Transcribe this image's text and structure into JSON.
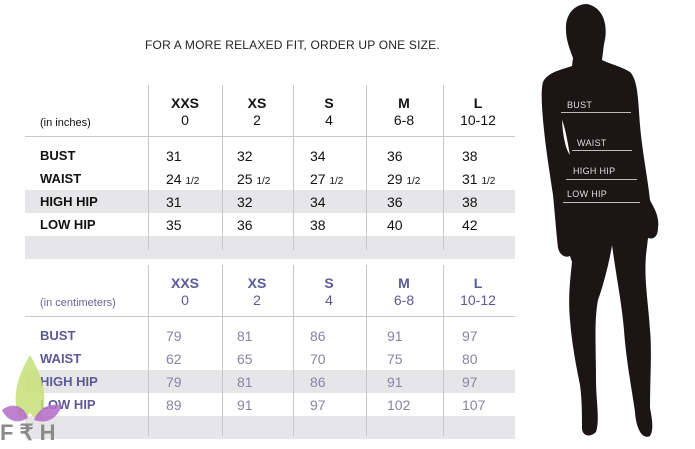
{
  "note": "FOR A MORE RELAXED FIT, ORDER UP ONE SIZE.",
  "sizes": [
    {
      "name": "XXS",
      "number": "0"
    },
    {
      "name": "XS",
      "number": "2"
    },
    {
      "name": "S",
      "number": "4"
    },
    {
      "name": "M",
      "number": "6-8"
    },
    {
      "name": "L",
      "number": "10-12"
    }
  ],
  "inches": {
    "unit_label": "(in inches)",
    "rows": [
      {
        "label": "BUST",
        "values": [
          {
            "w": "31",
            "f": ""
          },
          {
            "w": "32",
            "f": ""
          },
          {
            "w": "34",
            "f": ""
          },
          {
            "w": "36",
            "f": ""
          },
          {
            "w": "38",
            "f": ""
          }
        ]
      },
      {
        "label": "WAIST",
        "values": [
          {
            "w": "24",
            "f": "1/2"
          },
          {
            "w": "25",
            "f": "1/2"
          },
          {
            "w": "27",
            "f": "1/2"
          },
          {
            "w": "29",
            "f": "1/2"
          },
          {
            "w": "31",
            "f": "1/2"
          }
        ]
      },
      {
        "label": "HIGH HIP",
        "values": [
          {
            "w": "31",
            "f": ""
          },
          {
            "w": "32",
            "f": ""
          },
          {
            "w": "34",
            "f": ""
          },
          {
            "w": "36",
            "f": ""
          },
          {
            "w": "38",
            "f": ""
          }
        ]
      },
      {
        "label": "LOW HIP",
        "values": [
          {
            "w": "35",
            "f": ""
          },
          {
            "w": "36",
            "f": ""
          },
          {
            "w": "38",
            "f": ""
          },
          {
            "w": "40",
            "f": ""
          },
          {
            "w": "42",
            "f": ""
          }
        ]
      }
    ]
  },
  "centimeters": {
    "unit_label": "(in centimeters)",
    "rows": [
      {
        "label": "BUST",
        "values": [
          {
            "w": "79",
            "f": ""
          },
          {
            "w": "81",
            "f": ""
          },
          {
            "w": "86",
            "f": ""
          },
          {
            "w": "91",
            "f": ""
          },
          {
            "w": "97",
            "f": ""
          }
        ]
      },
      {
        "label": "WAIST",
        "values": [
          {
            "w": "62",
            "f": ""
          },
          {
            "w": "65",
            "f": ""
          },
          {
            "w": "70",
            "f": ""
          },
          {
            "w": "75",
            "f": ""
          },
          {
            "w": "80",
            "f": ""
          }
        ]
      },
      {
        "label": "HIGH HIP",
        "values": [
          {
            "w": "79",
            "f": ""
          },
          {
            "w": "81",
            "f": ""
          },
          {
            "w": "86",
            "f": ""
          },
          {
            "w": "91",
            "f": ""
          },
          {
            "w": "97",
            "f": ""
          }
        ]
      },
      {
        "label": "LOW HIP",
        "values": [
          {
            "w": "89",
            "f": ""
          },
          {
            "w": "91",
            "f": ""
          },
          {
            "w": "97",
            "f": ""
          },
          {
            "w": "102",
            "f": ""
          },
          {
            "w": "107",
            "f": ""
          }
        ]
      }
    ]
  },
  "figure_labels": [
    "BUST",
    "WAIST",
    "HIGH HIP",
    "LOW HIP"
  ],
  "logo_text": "F ₹ H",
  "colors": {
    "metric_text": "#5e5898",
    "band": "#e6e6e8",
    "silhouette": "#1c1516"
  }
}
